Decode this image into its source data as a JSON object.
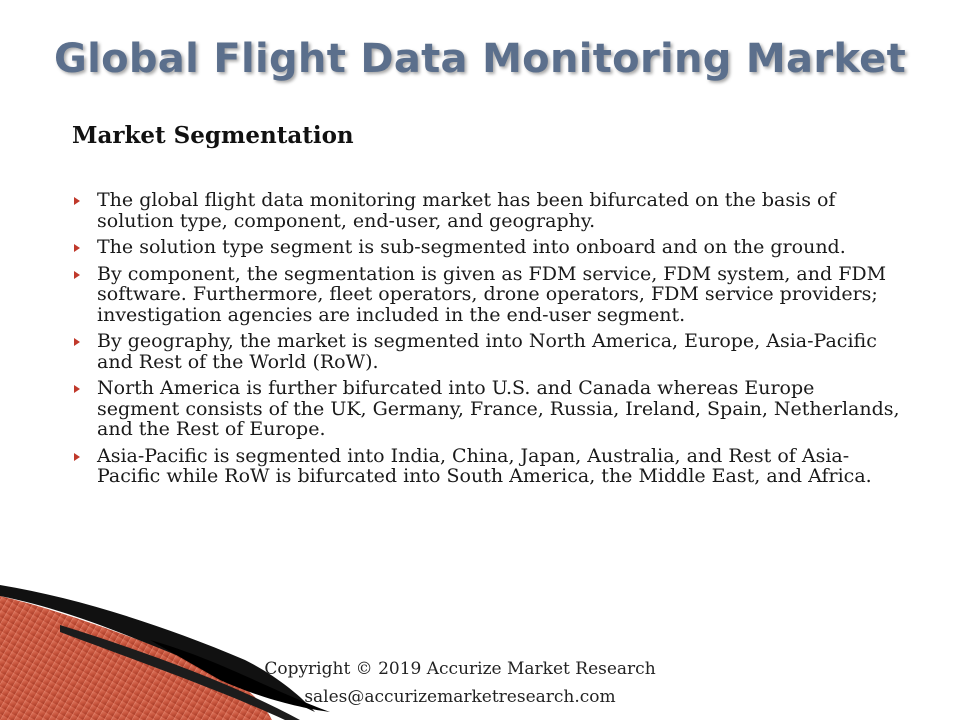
{
  "slide": {
    "title": "Global Flight Data Monitoring Market",
    "section_heading": "Market Segmentation",
    "bullets": [
      "The global flight data monitoring market has been bifurcated on the basis of solution type, component, end-user, and geography.",
      "The solution type segment is sub-segmented into onboard and on the ground.",
      "By component, the segmentation is given as FDM service, FDM system, and FDM software. Furthermore, fleet operators, drone operators, FDM service providers; investigation agencies are included in the end-user segment.",
      "By geography, the market is segmented into North America, Europe, Asia-Pacific and Rest of the World (RoW).",
      "North America is further bifurcated into U.S. and Canada whereas Europe segment consists of the UK, Germany, France, Russia, Ireland, Spain, Netherlands, and the Rest of Europe.",
      "Asia-Pacific is segmented into India, China, Japan, Australia, and Rest of Asia-Pacific while RoW is bifurcated into South America, the Middle East, and Africa."
    ]
  },
  "footer": {
    "copyright": "Copyright © 2019 Accurize Market Research",
    "email": "sales@accurizemarketresearch.com"
  },
  "colors": {
    "title": "#5b6f8c",
    "bullet_marker": "#c0392b",
    "decoration_red": "#c9573f",
    "decoration_black": "#111111"
  },
  "icons": {
    "bullet": "triangle-right-icon",
    "decoration": "red-black-swoosh"
  }
}
